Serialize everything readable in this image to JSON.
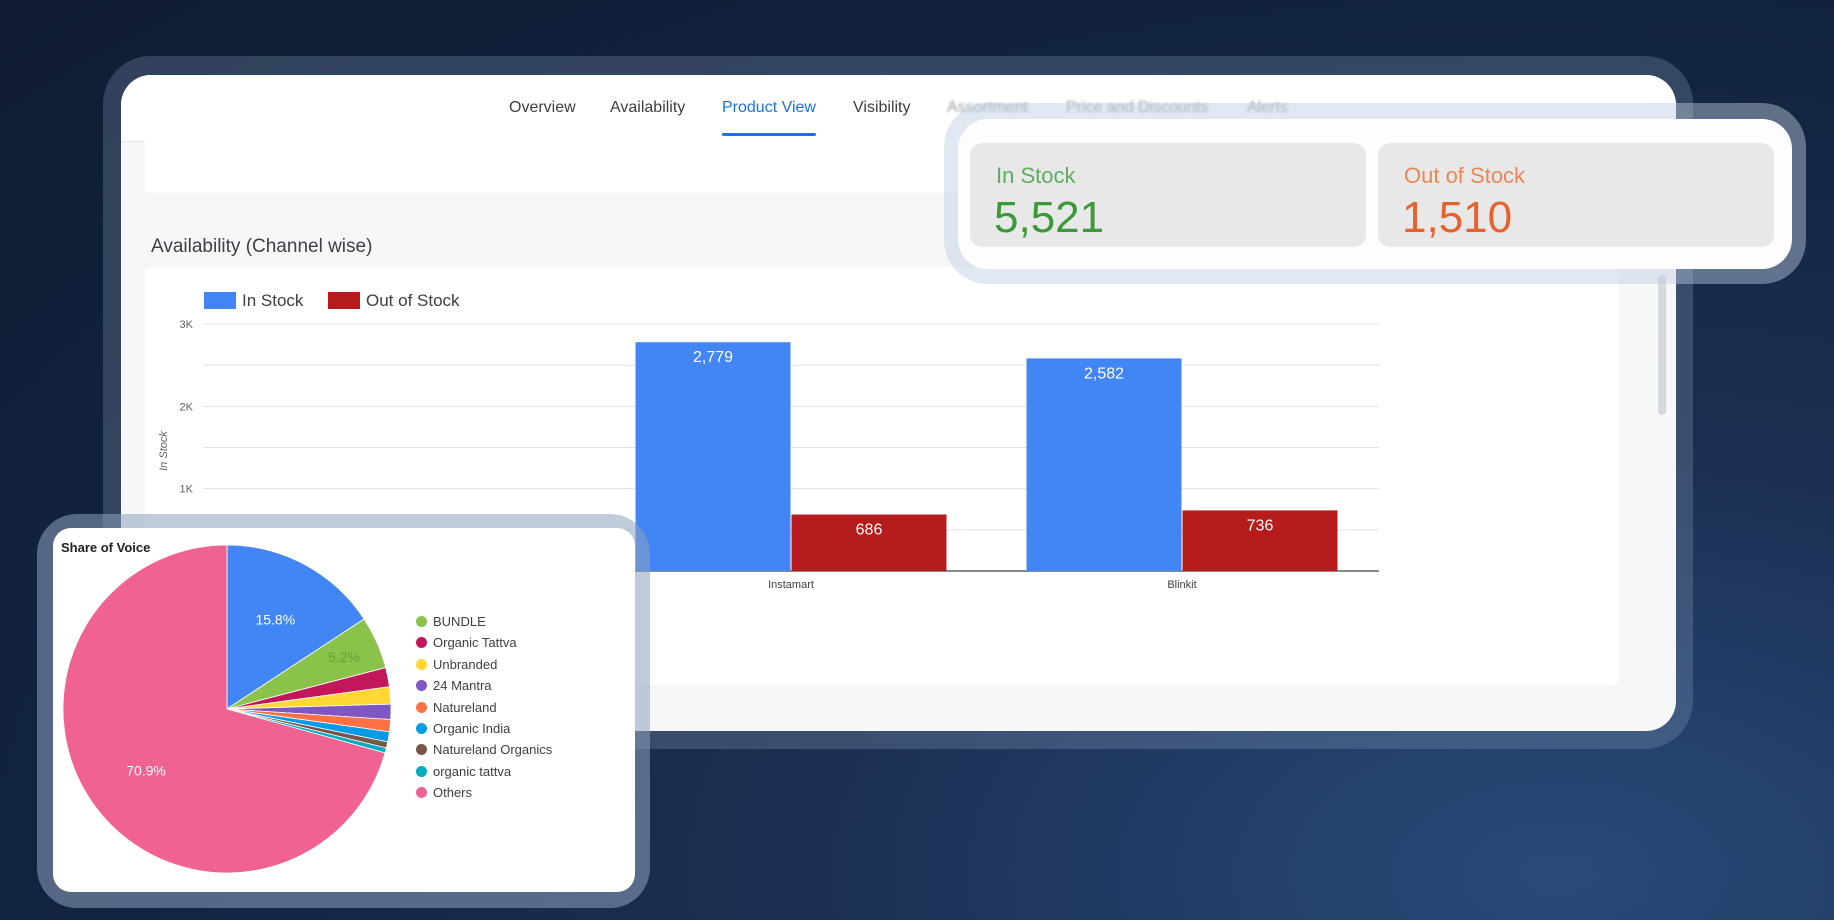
{
  "nav": {
    "tabs": [
      "Overview",
      "Availability",
      "Product View",
      "Visibility",
      "Assortment",
      "Price and Discounts",
      "Alerts"
    ],
    "active_tab": "Product View"
  },
  "availability": {
    "section_title": "Availability (Channel wise)"
  },
  "kpis": {
    "in_stock_label": "In Stock",
    "in_stock_value": "5,521",
    "out_of_stock_label": "Out of Stock",
    "out_of_stock_value": "1,510"
  },
  "colors": {
    "in_stock": "#4285f4",
    "out_of_stock": "#b71c1c",
    "kpi_green": "#3a9a3a",
    "kpi_orange": "#e8602c",
    "active_tab": "#1a73e8"
  },
  "chart_data": [
    {
      "type": "bar",
      "title": "",
      "ylabel": "In Stock",
      "xlabel": "",
      "ylim": [
        0,
        3000
      ],
      "yticks": [
        "3K",
        "2K",
        "1K"
      ],
      "categories": [
        "Instamart",
        "Blinkit"
      ],
      "legend_position": "top-left",
      "series": [
        {
          "name": "In Stock",
          "color": "#4285f4",
          "values": [
            2779,
            2582
          ],
          "labels": [
            "2,779",
            "2,582"
          ]
        },
        {
          "name": "Out of Stock",
          "color": "#b71c1c",
          "values": [
            686,
            736
          ],
          "labels": [
            "686",
            "736"
          ]
        }
      ],
      "grid": true
    },
    {
      "type": "pie",
      "title": "Share of Voice",
      "legend_position": "right",
      "slices": [
        {
          "name": "BUNDLE",
          "value": 5.2,
          "label": "5.2%",
          "color": "#8bc34a"
        },
        {
          "name": "Organic Tattva",
          "value": 1.9,
          "label": "",
          "color": "#c2185b"
        },
        {
          "name": "Unbranded",
          "value": 1.7,
          "label": "",
          "color": "#fdd835"
        },
        {
          "name": "24 Mantra",
          "value": 1.5,
          "label": "",
          "color": "#7e57c2"
        },
        {
          "name": "Natureland",
          "value": 1.2,
          "label": "",
          "color": "#ff7043"
        },
        {
          "name": "Organic India",
          "value": 1.0,
          "label": "",
          "color": "#039be5"
        },
        {
          "name": "Natureland Organics",
          "value": 0.6,
          "label": "",
          "color": "#795548"
        },
        {
          "name": "organic tattva",
          "value": 0.5,
          "label": "",
          "color": "#00acc1"
        },
        {
          "name": "Others",
          "value": 70.9,
          "label": "70.9%",
          "color": "#f06292"
        },
        {
          "name": "",
          "value": 15.8,
          "label": "15.8%",
          "color": "#4285f4"
        }
      ]
    }
  ]
}
